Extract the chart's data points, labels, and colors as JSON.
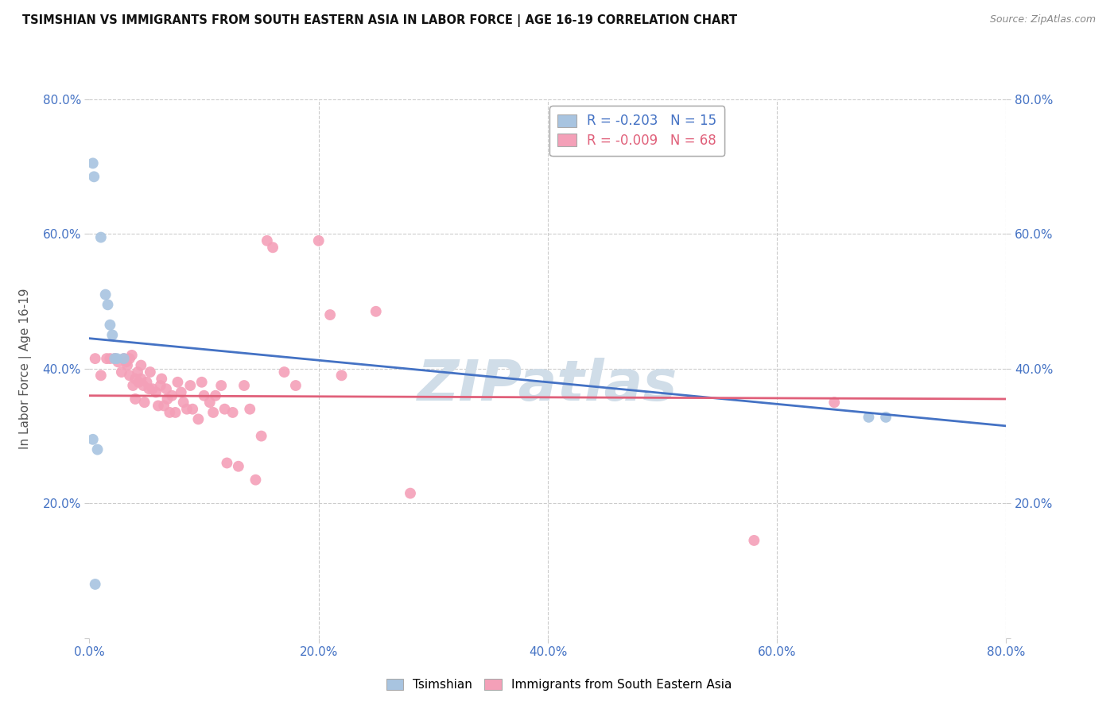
{
  "title": "TSIMSHIAN VS IMMIGRANTS FROM SOUTH EASTERN ASIA IN LABOR FORCE | AGE 16-19 CORRELATION CHART",
  "source": "Source: ZipAtlas.com",
  "ylabel": "In Labor Force | Age 16-19",
  "xlim": [
    0.0,
    0.8
  ],
  "ylim": [
    0.0,
    0.8
  ],
  "xticks": [
    0.0,
    0.2,
    0.4,
    0.6,
    0.8
  ],
  "yticks": [
    0.0,
    0.2,
    0.4,
    0.6,
    0.8
  ],
  "xticklabels": [
    "0.0%",
    "20.0%",
    "40.0%",
    "60.0%",
    "80.0%"
  ],
  "left_yticklabels": [
    "",
    "20.0%",
    "40.0%",
    "60.0%",
    "80.0%"
  ],
  "right_yticklabels": [
    "",
    "20.0%",
    "40.0%",
    "60.0%",
    "80.0%"
  ],
  "grid_color": "#cccccc",
  "background_color": "#ffffff",
  "tsimshian_color": "#a8c4e0",
  "immigrants_color": "#f4a0b8",
  "tsimshian_line_color": "#4472c4",
  "immigrants_line_color": "#e0607a",
  "legend_tsimshian_r": "-0.203",
  "legend_tsimshian_n": "15",
  "legend_immigrants_r": "-0.009",
  "legend_immigrants_n": "68",
  "tsimshian_x": [
    0.003,
    0.004,
    0.01,
    0.014,
    0.016,
    0.018,
    0.02,
    0.022,
    0.024,
    0.03,
    0.003,
    0.007,
    0.68,
    0.695,
    0.005
  ],
  "tsimshian_y": [
    0.705,
    0.685,
    0.595,
    0.51,
    0.495,
    0.465,
    0.45,
    0.415,
    0.415,
    0.415,
    0.295,
    0.28,
    0.328,
    0.328,
    0.08
  ],
  "immigrants_x": [
    0.005,
    0.01,
    0.015,
    0.018,
    0.022,
    0.025,
    0.028,
    0.03,
    0.032,
    0.033,
    0.035,
    0.035,
    0.037,
    0.038,
    0.04,
    0.04,
    0.042,
    0.043,
    0.045,
    0.045,
    0.047,
    0.048,
    0.05,
    0.052,
    0.053,
    0.055,
    0.058,
    0.06,
    0.062,
    0.063,
    0.065,
    0.067,
    0.068,
    0.07,
    0.072,
    0.075,
    0.077,
    0.08,
    0.082,
    0.085,
    0.088,
    0.09,
    0.095,
    0.098,
    0.1,
    0.105,
    0.108,
    0.11,
    0.115,
    0.118,
    0.12,
    0.125,
    0.13,
    0.135,
    0.14,
    0.145,
    0.15,
    0.155,
    0.16,
    0.17,
    0.18,
    0.2,
    0.21,
    0.22,
    0.25,
    0.28,
    0.58,
    0.65
  ],
  "immigrants_y": [
    0.415,
    0.39,
    0.415,
    0.415,
    0.415,
    0.41,
    0.395,
    0.415,
    0.41,
    0.405,
    0.415,
    0.39,
    0.42,
    0.375,
    0.385,
    0.355,
    0.395,
    0.38,
    0.405,
    0.385,
    0.375,
    0.35,
    0.38,
    0.37,
    0.395,
    0.37,
    0.365,
    0.345,
    0.375,
    0.385,
    0.345,
    0.37,
    0.355,
    0.335,
    0.36,
    0.335,
    0.38,
    0.365,
    0.35,
    0.34,
    0.375,
    0.34,
    0.325,
    0.38,
    0.36,
    0.35,
    0.335,
    0.36,
    0.375,
    0.34,
    0.26,
    0.335,
    0.255,
    0.375,
    0.34,
    0.235,
    0.3,
    0.59,
    0.58,
    0.395,
    0.375,
    0.59,
    0.48,
    0.39,
    0.485,
    0.215,
    0.145,
    0.35
  ],
  "watermark_text": "ZIPatlas",
  "watermark_color": "#d0dde8",
  "watermark_fontsize": 52,
  "tsimshian_line_x0": 0.0,
  "tsimshian_line_x1": 0.8,
  "tsimshian_line_y0": 0.445,
  "tsimshian_line_y1": 0.315,
  "immigrants_line_x0": 0.0,
  "immigrants_line_x1": 0.8,
  "immigrants_line_y0": 0.36,
  "immigrants_line_y1": 0.355
}
